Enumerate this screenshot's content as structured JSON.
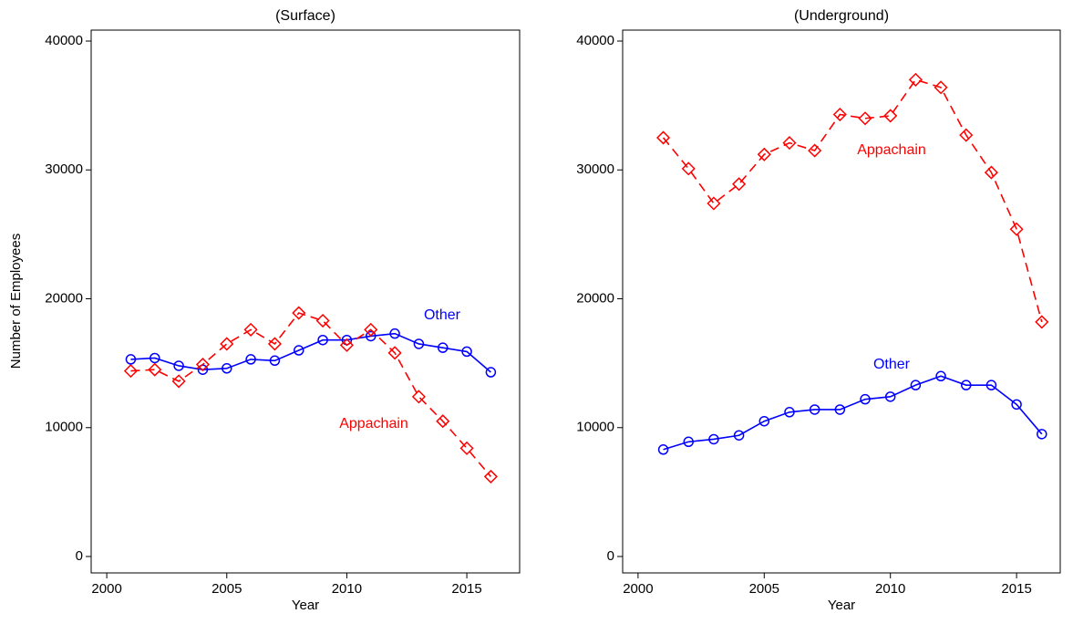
{
  "chart_data": [
    {
      "type": "line",
      "title": "(Surface)",
      "xlabel": "Year",
      "ylabel": "Number of Employees",
      "x": [
        2001,
        2002,
        2003,
        2004,
        2005,
        2006,
        2007,
        2008,
        2009,
        2010,
        2011,
        2012,
        2013,
        2014,
        2015,
        2016
      ],
      "xlim": [
        1999.35,
        2017.2
      ],
      "xticks": [
        2000,
        2005,
        2010,
        2015
      ],
      "ylim": [
        -1274,
        40850
      ],
      "yticks": [
        0,
        10000,
        20000,
        30000,
        40000
      ],
      "series": [
        {
          "name": "Other",
          "color": "#0000ff",
          "marker": "circle",
          "dashed": false,
          "values": [
            15300,
            15400,
            14800,
            14500,
            14600,
            15300,
            15200,
            16000,
            16800,
            16800,
            17100,
            17300,
            16500,
            16200,
            15900,
            14300
          ]
        },
        {
          "name": "Appachain",
          "color": "#ff0000",
          "marker": "diamond",
          "dashed": true,
          "values": [
            14400,
            14500,
            13600,
            14900,
            16500,
            17600,
            16500,
            18900,
            18300,
            16400,
            17600,
            15800,
            12400,
            10500,
            8400,
            6200
          ]
        }
      ]
    },
    {
      "type": "line",
      "title": "(Underground)",
      "xlabel": "Year",
      "x": [
        2001,
        2002,
        2003,
        2004,
        2005,
        2006,
        2007,
        2008,
        2009,
        2010,
        2011,
        2012,
        2013,
        2014,
        2015,
        2016
      ],
      "xlim": [
        1999.39,
        2016.73
      ],
      "xticks": [
        2000,
        2005,
        2010,
        2015
      ],
      "ylim": [
        -1274,
        40850
      ],
      "yticks": [
        0,
        10000,
        20000,
        30000,
        40000
      ],
      "series": [
        {
          "name": "Appachain",
          "color": "#ff0000",
          "marker": "diamond",
          "dashed": true,
          "values": [
            32500,
            30100,
            27400,
            28900,
            31200,
            32100,
            31500,
            34300,
            34000,
            34200,
            37000,
            36400,
            32700,
            29800,
            25400,
            18200
          ]
        },
        {
          "name": "Other",
          "color": "#0000ff",
          "marker": "circle",
          "dashed": false,
          "values": [
            8300,
            8900,
            9100,
            9400,
            10500,
            11200,
            11400,
            11400,
            12200,
            12400,
            13300,
            14000,
            13300,
            13300,
            11800,
            9500
          ]
        }
      ]
    }
  ]
}
